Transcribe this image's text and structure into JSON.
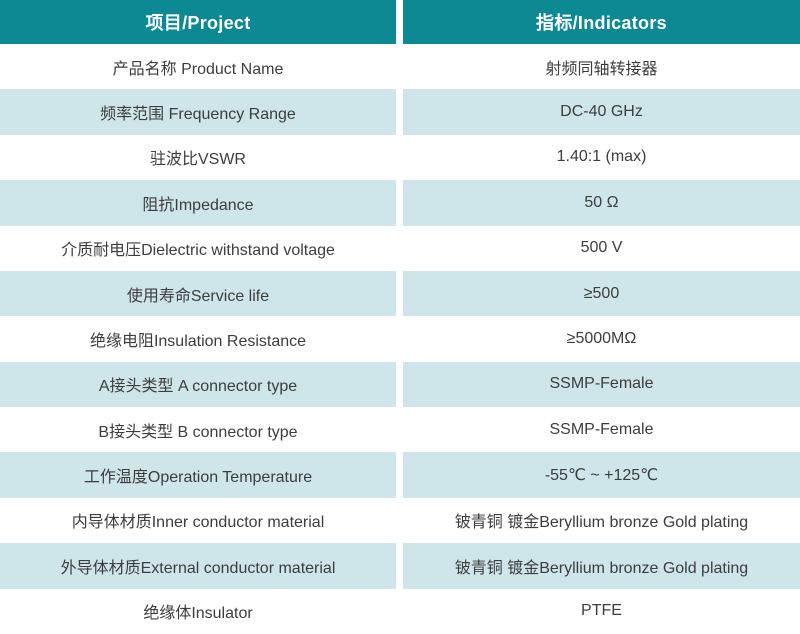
{
  "colors": {
    "header_bg": "#0d8994",
    "header_text": "#ffffff",
    "row_shaded_bg": "#cee5ea",
    "row_plain_bg": "#ffffff",
    "body_text": "#3d3d3d",
    "divider": "#ffffff"
  },
  "table": {
    "headers": [
      {
        "label": "项目/Project"
      },
      {
        "label": "指标/Indicators"
      }
    ],
    "rows": [
      {
        "project": "产品名称 Product Name",
        "indicator": "射频同轴转接器"
      },
      {
        "project": "频率范围 Frequency Range",
        "indicator": "DC-40 GHz"
      },
      {
        "project": "驻波比VSWR",
        "indicator": "1.40:1 (max)"
      },
      {
        "project": "阻抗Impedance",
        "indicator": "50 Ω"
      },
      {
        "project": "介质耐电压Dielectric withstand voltage",
        "indicator": "500 V"
      },
      {
        "project": "使用寿命Service life",
        "indicator": "≥500"
      },
      {
        "project": "绝缘电阻Insulation Resistance",
        "indicator": "≥5000MΩ"
      },
      {
        "project": "A接头类型 A connector type",
        "indicator": "SSMP-Female"
      },
      {
        "project": "B接头类型 B connector type",
        "indicator": "SSMP-Female"
      },
      {
        "project": "工作温度Operation Temperature",
        "indicator": "-55℃ ~ +125℃"
      },
      {
        "project": "内导体材质Inner conductor material",
        "indicator": "铍青铜 镀金Beryllium bronze Gold plating"
      },
      {
        "project": "外导体材质External conductor material",
        "indicator": "铍青铜 镀金Beryllium bronze Gold plating"
      },
      {
        "project": "绝缘体Insulator",
        "indicator": "PTFE"
      }
    ]
  }
}
